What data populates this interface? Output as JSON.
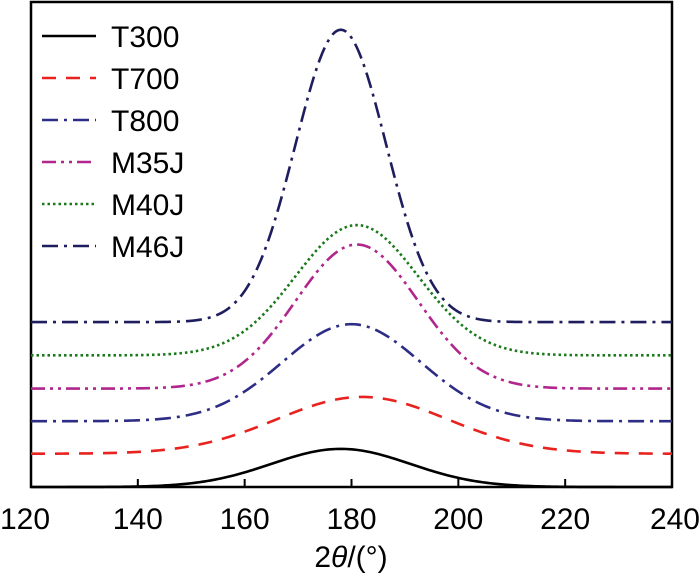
{
  "chart_data": {
    "type": "line",
    "title": "",
    "xlabel_prefix": "2",
    "xlabel_symbol": "θ",
    "xlabel_suffix": "/(°)",
    "ylabel": "",
    "xlim": [
      120,
      240
    ],
    "ylim": [
      0,
      7
    ],
    "xticks": [
      120,
      140,
      160,
      180,
      200,
      220,
      240
    ],
    "grid": false,
    "legend_position": "top-left",
    "series": [
      {
        "name": "T300",
        "color": "#000000",
        "dash": "solid",
        "baseline": 0.0,
        "amplitude": 0.55,
        "center": 178,
        "width": 13,
        "x": [
          120,
          130,
          140,
          150,
          160,
          165,
          170,
          175,
          178,
          180,
          185,
          190,
          195,
          200,
          210,
          220,
          230,
          240
        ],
        "y": [
          0.0,
          0.01,
          0.04,
          0.12,
          0.28,
          0.38,
          0.47,
          0.53,
          0.55,
          0.55,
          0.5,
          0.42,
          0.31,
          0.21,
          0.07,
          0.02,
          0.0,
          0.0
        ]
      },
      {
        "name": "T700",
        "color": "#e8231f",
        "dash": "dashed",
        "baseline": 0.48,
        "amplitude": 0.82,
        "center": 182,
        "width": 16,
        "x": [
          120,
          130,
          140,
          150,
          160,
          170,
          175,
          180,
          182,
          185,
          190,
          200,
          210,
          220,
          230,
          240
        ],
        "y": [
          0.48,
          0.5,
          0.58,
          0.74,
          0.96,
          1.18,
          1.26,
          1.3,
          1.3,
          1.29,
          1.21,
          0.98,
          0.72,
          0.57,
          0.5,
          0.48
        ]
      },
      {
        "name": "T800",
        "color": "#2e2d86",
        "dash": "dash-dot",
        "baseline": 0.95,
        "amplitude": 1.4,
        "center": 180,
        "width": 13,
        "x": [
          120,
          130,
          140,
          150,
          160,
          170,
          175,
          180,
          185,
          190,
          200,
          210,
          220,
          230,
          240
        ],
        "y": [
          0.95,
          0.96,
          1.01,
          1.17,
          1.55,
          2.04,
          2.27,
          2.35,
          2.27,
          2.04,
          1.5,
          1.14,
          0.99,
          0.96,
          0.95
        ]
      },
      {
        "name": "M35J",
        "color": "#b0268c",
        "dash": "dash-dot-dot",
        "baseline": 1.42,
        "amplitude": 2.08,
        "center": 181,
        "width": 11.5,
        "x": [
          120,
          130,
          140,
          150,
          160,
          170,
          175,
          180,
          181,
          185,
          190,
          200,
          210,
          220,
          230,
          240
        ],
        "y": [
          1.42,
          1.42,
          1.45,
          1.6,
          2.1,
          2.95,
          3.35,
          3.49,
          3.5,
          3.38,
          2.95,
          2.06,
          1.58,
          1.45,
          1.42,
          1.42
        ]
      },
      {
        "name": "M40J",
        "color": "#1a7a1a",
        "dash": "dotted",
        "baseline": 1.9,
        "amplitude": 1.88,
        "center": 181,
        "width": 11.5,
        "x": [
          120,
          130,
          140,
          150,
          160,
          170,
          175,
          180,
          181,
          185,
          190,
          200,
          210,
          220,
          230,
          240
        ],
        "y": [
          1.9,
          1.9,
          1.93,
          2.06,
          2.51,
          3.28,
          3.64,
          3.77,
          3.78,
          3.67,
          3.28,
          2.48,
          2.05,
          1.93,
          1.9,
          1.9
        ]
      },
      {
        "name": "M46J",
        "color": "#1e1e5e",
        "dash": "dash-dot",
        "baseline": 2.38,
        "amplitude": 4.22,
        "center": 178,
        "width": 8.5,
        "x": [
          120,
          130,
          150,
          160,
          165,
          170,
          175,
          178,
          180,
          185,
          190,
          195,
          200,
          210,
          220,
          240
        ],
        "y": [
          2.38,
          2.38,
          2.56,
          3.54,
          4.66,
          5.88,
          6.49,
          6.6,
          6.5,
          5.55,
          4.2,
          3.21,
          2.7,
          2.4,
          2.38,
          2.38
        ]
      }
    ]
  }
}
